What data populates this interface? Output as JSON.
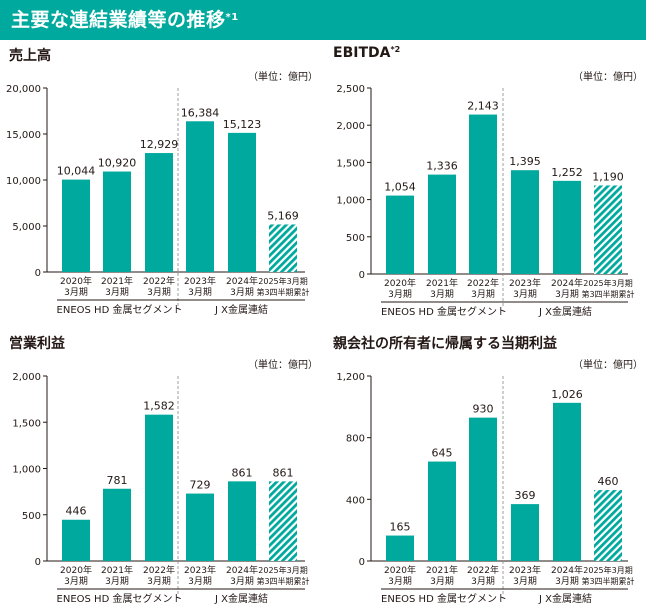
{
  "header": {
    "title": "主要な連結業績等の推移",
    "title_sup": "*1"
  },
  "colors": {
    "accent": "#00a99d",
    "axis": "#231815",
    "divider": "#888888"
  },
  "charts": [
    {
      "title": "売上高",
      "title_sup": "",
      "unit": "（単位：億円）",
      "ylim": [
        0,
        20000
      ],
      "yticks": [
        "20,000",
        "15,000",
        "10,000",
        "5,000",
        "0"
      ]
    },
    {
      "title": "EBITDA",
      "title_sup": "*2",
      "unit": "（単位：億円）",
      "ylim": [
        0,
        2500
      ],
      "yticks": [
        "2,500",
        "2,000",
        "1,500",
        "1,000",
        "500",
        "0"
      ]
    },
    {
      "title": "営業利益",
      "title_sup": "",
      "unit": "（単位：億円）",
      "ylim": [
        0,
        2000
      ],
      "yticks": [
        "2,000",
        "1,500",
        "1,000",
        "500",
        "0"
      ]
    },
    {
      "title": "親会社の所有者に帰属する当期利益",
      "title_sup": "",
      "unit": "（単位：億円）",
      "ylim": [
        0,
        1200
      ],
      "yticks": [
        "1,200",
        "800",
        "400",
        "0"
      ]
    }
  ],
  "categories_line1": [
    "2020年",
    "2021年",
    "2022年",
    "2023年",
    "2024年",
    "2025年3月期"
  ],
  "categories_line2": [
    "3月期",
    "3月期",
    "3月期",
    "3月期",
    "3月期",
    "第3四半期累計"
  ],
  "groups": [
    "ENEOS HD 金属セグメント",
    "J X金属連結"
  ],
  "chart_data": [
    {
      "type": "bar",
      "title": "売上高",
      "ylabel": "",
      "ylim": [
        0,
        20000
      ],
      "categories": [
        "2020年3月期",
        "2021年3月期",
        "2022年3月期",
        "2023年3月期",
        "2024年3月期",
        "2025年3月期第3四半期累計"
      ],
      "values": [
        10044,
        10920,
        12929,
        16384,
        15123,
        5169
      ],
      "labels": [
        "10,044",
        "10,920",
        "12,929",
        "16,384",
        "15,123",
        "5,169"
      ]
    },
    {
      "type": "bar",
      "title": "EBITDA",
      "ylabel": "",
      "ylim": [
        0,
        2500
      ],
      "categories": [
        "2020年3月期",
        "2021年3月期",
        "2022年3月期",
        "2023年3月期",
        "2024年3月期",
        "2025年3月期第3四半期累計"
      ],
      "values": [
        1054,
        1336,
        2143,
        1395,
        1252,
        1190
      ],
      "labels": [
        "1,054",
        "1,336",
        "2,143",
        "1,395",
        "1,252",
        "1,190"
      ]
    },
    {
      "type": "bar",
      "title": "営業利益",
      "ylabel": "",
      "ylim": [
        0,
        2000
      ],
      "categories": [
        "2020年3月期",
        "2021年3月期",
        "2022年3月期",
        "2023年3月期",
        "2024年3月期",
        "2025年3月期第3四半期累計"
      ],
      "values": [
        446,
        781,
        1582,
        729,
        861,
        861
      ],
      "labels": [
        "446",
        "781",
        "1,582",
        "729",
        "861",
        "861"
      ]
    },
    {
      "type": "bar",
      "title": "親会社の所有者に帰属する当期利益",
      "ylabel": "",
      "ylim": [
        0,
        1200
      ],
      "categories": [
        "2020年3月期",
        "2021年3月期",
        "2022年3月期",
        "2023年3月期",
        "2024年3月期",
        "2025年3月期第3四半期累計"
      ],
      "values": [
        165,
        645,
        930,
        369,
        1026,
        460
      ],
      "labels": [
        "165",
        "645",
        "930",
        "369",
        "1,026",
        "460"
      ]
    }
  ]
}
